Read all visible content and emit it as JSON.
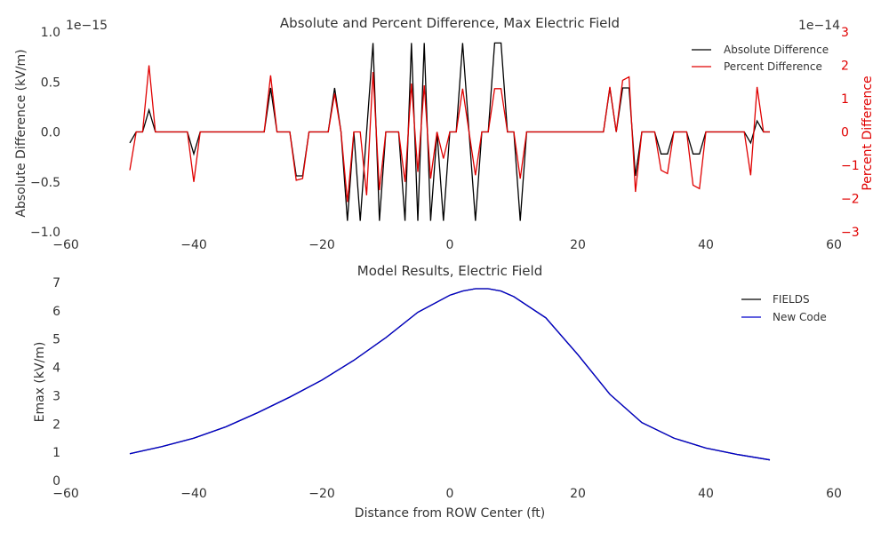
{
  "chart_data": [
    {
      "type": "line",
      "title": "Absolute and Percent Difference, Max Electric Field",
      "xlabel": "",
      "ylabel": "Absolute Difference (kV/m)",
      "y2label": "Percent Difference",
      "xlim": [
        -60,
        60
      ],
      "ylim": [
        -1.0,
        1.0
      ],
      "y2lim": [
        -3,
        3
      ],
      "y_offset_text": "1e−15",
      "y2_offset_text": "1e−14",
      "xticks": [
        "−60",
        "−40",
        "−20",
        "0",
        "20",
        "40",
        "60"
      ],
      "yticks": [
        "1.0",
        "0.5",
        "0.0",
        "−0.5",
        "−1.0"
      ],
      "y2ticks": [
        "3",
        "2",
        "1",
        "0",
        "−1",
        "−2",
        "−3"
      ],
      "legend_position": "top-right",
      "grid": false,
      "x": [
        -50,
        -49,
        -48,
        -47,
        -46,
        -45,
        -44,
        -43,
        -42,
        -41,
        -40,
        -39,
        -38,
        -37,
        -36,
        -35,
        -34,
        -33,
        -32,
        -31,
        -30,
        -29,
        -28,
        -27,
        -26,
        -25,
        -24,
        -23,
        -22,
        -21,
        -20,
        -19,
        -18,
        -17,
        -16,
        -15,
        -14,
        -13,
        -12,
        -11,
        -10,
        -9,
        -8,
        -7,
        -6,
        -5,
        -4,
        -3,
        -2,
        -1,
        0,
        1,
        2,
        3,
        4,
        5,
        6,
        7,
        8,
        9,
        10,
        11,
        12,
        13,
        14,
        15,
        16,
        17,
        18,
        19,
        20,
        21,
        22,
        23,
        24,
        25,
        26,
        27,
        28,
        29,
        30,
        31,
        32,
        33,
        34,
        35,
        36,
        37,
        38,
        39,
        40,
        41,
        42,
        43,
        44,
        45,
        46,
        47,
        48,
        49,
        50
      ],
      "series": [
        {
          "name": "Absolute Difference",
          "color": "#000000",
          "axis": "left",
          "values": [
            -0.11,
            0,
            0,
            0.22,
            0,
            0,
            0,
            0,
            0,
            0,
            -0.22,
            0,
            0,
            0,
            0,
            0,
            0,
            0,
            0,
            0,
            0,
            0,
            0.44,
            0,
            0,
            0,
            -0.44,
            -0.44,
            0,
            0,
            0,
            0,
            0.44,
            0,
            -0.89,
            0,
            -0.89,
            0,
            0.89,
            -0.89,
            0,
            0,
            0,
            -0.89,
            0.89,
            -0.89,
            0.89,
            -0.89,
            0,
            -0.89,
            0,
            0,
            0.89,
            0,
            -0.89,
            0,
            0,
            0.89,
            0.89,
            0,
            0,
            -0.89,
            0,
            0,
            0,
            0,
            0,
            0,
            0,
            0,
            0,
            0,
            0,
            0,
            0,
            0.44,
            0,
            0.44,
            0.44,
            -0.44,
            0,
            0,
            0,
            -0.22,
            -0.22,
            0,
            0,
            0,
            -0.22,
            -0.22,
            0,
            0,
            0,
            0,
            0,
            0,
            0,
            -0.11,
            0.11,
            0,
            0
          ]
        },
        {
          "name": "Percent Difference",
          "color": "#e00000",
          "axis": "right",
          "values": [
            -1.15,
            0,
            0,
            2.0,
            0,
            0,
            0,
            0,
            0,
            0,
            -1.5,
            0,
            0,
            0,
            0,
            0,
            0,
            0,
            0,
            0,
            0,
            0,
            1.7,
            0,
            0,
            0,
            -1.45,
            -1.4,
            0,
            0,
            0,
            0,
            1.15,
            0,
            -2.1,
            0,
            0,
            -1.9,
            1.8,
            -1.75,
            0,
            0,
            0,
            -1.5,
            1.45,
            -1.2,
            1.4,
            -1.4,
            0,
            -0.8,
            0,
            0,
            1.3,
            0,
            -1.3,
            0,
            0,
            1.3,
            1.3,
            0,
            0,
            -1.4,
            0,
            0,
            0,
            0,
            0,
            0,
            0,
            0,
            0,
            0,
            0,
            0,
            0,
            1.35,
            0,
            1.55,
            1.65,
            -1.8,
            0,
            0,
            0,
            -1.15,
            -1.25,
            0,
            0,
            0,
            -1.6,
            -1.7,
            0,
            0,
            0,
            0,
            0,
            0,
            0,
            -1.3,
            1.35,
            0,
            0
          ]
        }
      ]
    },
    {
      "type": "line",
      "title": "Model Results, Electric Field",
      "xlabel": "Distance from ROW Center (ft)",
      "ylabel": "Emax (kV/m)",
      "xlim": [
        -60,
        60
      ],
      "ylim": [
        0,
        7
      ],
      "xticks": [
        "−60",
        "−40",
        "−20",
        "0",
        "20",
        "40",
        "60"
      ],
      "yticks": [
        "7",
        "6",
        "5",
        "4",
        "3",
        "2",
        "1",
        "0"
      ],
      "legend_position": "top-right",
      "grid": false,
      "x": [
        -50,
        -45,
        -40,
        -35,
        -30,
        -25,
        -20,
        -15,
        -10,
        -5,
        0,
        2,
        4,
        6,
        8,
        10,
        15,
        20,
        25,
        30,
        35,
        40,
        45,
        50
      ],
      "series": [
        {
          "name": "FIELDS",
          "color": "#000000",
          "values": [
            0.95,
            1.2,
            1.5,
            1.9,
            2.4,
            2.95,
            3.55,
            4.25,
            5.05,
            5.95,
            6.55,
            6.7,
            6.78,
            6.78,
            6.7,
            6.5,
            5.75,
            4.45,
            3.05,
            2.05,
            1.5,
            1.15,
            0.92,
            0.73
          ]
        },
        {
          "name": "New Code",
          "color": "#0000cc",
          "values": [
            0.95,
            1.2,
            1.5,
            1.9,
            2.4,
            2.95,
            3.55,
            4.25,
            5.05,
            5.95,
            6.55,
            6.7,
            6.78,
            6.78,
            6.7,
            6.5,
            5.75,
            4.45,
            3.05,
            2.05,
            1.5,
            1.15,
            0.92,
            0.73
          ]
        }
      ]
    }
  ]
}
